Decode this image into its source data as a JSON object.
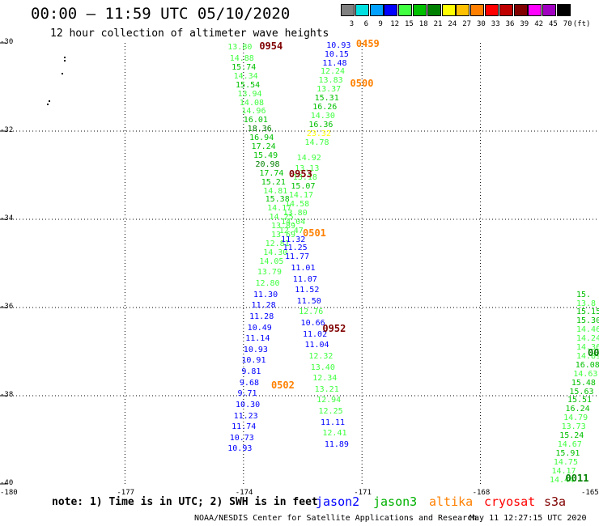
{
  "header": {
    "title": "00:00 – 11:59 UTC 05/10/2020",
    "subtitle": "12 hour collection of altimeter wave heights"
  },
  "colorbar": {
    "unit_label": "(ft)",
    "bins": [
      {
        "label": "3",
        "color": "#808080"
      },
      {
        "label": "6",
        "color": "#00e0e0"
      },
      {
        "label": "9",
        "color": "#00a0ff"
      },
      {
        "label": "12",
        "color": "#0000ff"
      },
      {
        "label": "15",
        "color": "#40ff40"
      },
      {
        "label": "18",
        "color": "#00c000"
      },
      {
        "label": "21",
        "color": "#008000"
      },
      {
        "label": "24",
        "color": "#ffff00"
      },
      {
        "label": "27",
        "color": "#ffc000"
      },
      {
        "label": "30",
        "color": "#ff8000"
      },
      {
        "label": "33",
        "color": "#ff0000"
      },
      {
        "label": "36",
        "color": "#c00000"
      },
      {
        "label": "39",
        "color": "#800000"
      },
      {
        "label": "42",
        "color": "#ff00ff"
      },
      {
        "label": "45",
        "color": "#a000c0"
      },
      {
        "label": "70",
        "color": "#000000"
      }
    ]
  },
  "map": {
    "lon_labels": [
      "-180",
      "-177",
      "-174",
      "-171",
      "-168",
      "-165"
    ],
    "lat_labels": [
      "-30",
      "-32",
      "-34",
      "-36",
      "-38",
      "-40"
    ],
    "lon_range": [
      -180,
      -165
    ],
    "lat_range": [
      -40,
      -30
    ]
  },
  "observations": [
    {
      "v": "13.80",
      "c": "#40ff40",
      "lon": -174.4,
      "lat": -30.1
    },
    {
      "v": "14.88",
      "c": "#40ff40",
      "lon": -174.35,
      "lat": -30.35
    },
    {
      "v": "15.74",
      "c": "#00c000",
      "lon": -174.3,
      "lat": -30.55
    },
    {
      "v": "14.34",
      "c": "#40ff40",
      "lon": -174.25,
      "lat": -30.75
    },
    {
      "v": "15.54",
      "c": "#00c000",
      "lon": -174.2,
      "lat": -30.95
    },
    {
      "v": "13.94",
      "c": "#40ff40",
      "lon": -174.15,
      "lat": -31.15
    },
    {
      "v": "14.08",
      "c": "#40ff40",
      "lon": -174.1,
      "lat": -31.35
    },
    {
      "v": "14.96",
      "c": "#40ff40",
      "lon": -174.05,
      "lat": -31.55
    },
    {
      "v": "16.01",
      "c": "#00c000",
      "lon": -174.0,
      "lat": -31.75
    },
    {
      "v": "18.36",
      "c": "#008000",
      "lon": -173.9,
      "lat": -31.95
    },
    {
      "v": "16.94",
      "c": "#00c000",
      "lon": -173.85,
      "lat": -32.15
    },
    {
      "v": "17.24",
      "c": "#00c000",
      "lon": -173.8,
      "lat": -32.35
    },
    {
      "v": "15.49",
      "c": "#00c000",
      "lon": -173.75,
      "lat": -32.55
    },
    {
      "v": "20.98",
      "c": "#008000",
      "lon": -173.7,
      "lat": -32.75
    },
    {
      "v": "17.74",
      "c": "#00c000",
      "lon": -173.6,
      "lat": -32.95
    },
    {
      "v": "15.21",
      "c": "#00c000",
      "lon": -173.55,
      "lat": -33.15
    },
    {
      "v": "14.81",
      "c": "#40ff40",
      "lon": -173.5,
      "lat": -33.35
    },
    {
      "v": "15.38",
      "c": "#00c000",
      "lon": -173.45,
      "lat": -33.55
    },
    {
      "v": "14.17",
      "c": "#40ff40",
      "lon": -173.4,
      "lat": -33.75
    },
    {
      "v": "14.25",
      "c": "#40ff40",
      "lon": -173.35,
      "lat": -33.95
    },
    {
      "v": "13.89",
      "c": "#40ff40",
      "lon": -173.3,
      "lat": -34.15
    },
    {
      "v": "13.69",
      "c": "#40ff40",
      "lon": -173.3,
      "lat": -34.35
    },
    {
      "v": "12.81",
      "c": "#40ff40",
      "lon": -173.45,
      "lat": -34.55
    },
    {
      "v": "14.30",
      "c": "#40ff40",
      "lon": -173.5,
      "lat": -34.75
    },
    {
      "v": "14.05",
      "c": "#40ff40",
      "lon": -173.6,
      "lat": -34.95
    },
    {
      "v": "13.79",
      "c": "#40ff40",
      "lon": -173.65,
      "lat": -35.2
    },
    {
      "v": "12.80",
      "c": "#40ff40",
      "lon": -173.7,
      "lat": -35.45
    },
    {
      "v": "11.30",
      "c": "#0000ff",
      "lon": -173.75,
      "lat": -35.7
    },
    {
      "v": "11.28",
      "c": "#0000ff",
      "lon": -173.8,
      "lat": -35.95
    },
    {
      "v": "11.28",
      "c": "#0000ff",
      "lon": -173.85,
      "lat": -36.2
    },
    {
      "v": "10.49",
      "c": "#0000ff",
      "lon": -173.9,
      "lat": -36.45
    },
    {
      "v": "11.14",
      "c": "#0000ff",
      "lon": -173.95,
      "lat": -36.7
    },
    {
      "v": "10.93",
      "c": "#0000ff",
      "lon": -174.0,
      "lat": -36.95
    },
    {
      "v": "10.91",
      "c": "#0000ff",
      "lon": -174.05,
      "lat": -37.2
    },
    {
      "v": "9.81",
      "c": "#0000ff",
      "lon": -174.05,
      "lat": -37.45
    },
    {
      "v": "9.68",
      "c": "#0000ff",
      "lon": -174.1,
      "lat": -37.7
    },
    {
      "v": "9.71",
      "c": "#0000ff",
      "lon": -174.15,
      "lat": -37.95
    },
    {
      "v": "10.30",
      "c": "#0000ff",
      "lon": -174.2,
      "lat": -38.2
    },
    {
      "v": "11.23",
      "c": "#0000ff",
      "lon": -174.25,
      "lat": -38.45
    },
    {
      "v": "11.74",
      "c": "#0000ff",
      "lon": -174.3,
      "lat": -38.7
    },
    {
      "v": "10.73",
      "c": "#0000ff",
      "lon": -174.35,
      "lat": -38.95
    },
    {
      "v": "10.93",
      "c": "#0000ff",
      "lon": -174.4,
      "lat": -39.2
    },
    {
      "v": "10.93",
      "c": "#0000ff",
      "lon": -171.9,
      "lat": -30.05
    },
    {
      "v": "10.15",
      "c": "#0000ff",
      "lon": -171.95,
      "lat": -30.25
    },
    {
      "v": "11.48",
      "c": "#0000ff",
      "lon": -172.0,
      "lat": -30.45
    },
    {
      "v": "12.24",
      "c": "#40ff40",
      "lon": -172.05,
      "lat": -30.65
    },
    {
      "v": "13.83",
      "c": "#40ff40",
      "lon": -172.1,
      "lat": -30.85
    },
    {
      "v": "13.37",
      "c": "#40ff40",
      "lon": -172.15,
      "lat": -31.05
    },
    {
      "v": "15.31",
      "c": "#00c000",
      "lon": -172.2,
      "lat": -31.25
    },
    {
      "v": "16.26",
      "c": "#00c000",
      "lon": -172.25,
      "lat": -31.45
    },
    {
      "v": "14.30",
      "c": "#40ff40",
      "lon": -172.3,
      "lat": -31.65
    },
    {
      "v": "16.36",
      "c": "#00c000",
      "lon": -172.35,
      "lat": -31.85
    },
    {
      "v": "23.32",
      "c": "#ffff00",
      "lon": -172.4,
      "lat": -32.05
    },
    {
      "v": "14.78",
      "c": "#40ff40",
      "lon": -172.45,
      "lat": -32.25
    },
    {
      "v": "14.92",
      "c": "#40ff40",
      "lon": -172.65,
      "lat": -32.6
    },
    {
      "v": "13.13",
      "c": "#40ff40",
      "lon": -172.7,
      "lat": -32.85
    },
    {
      "v": "13.18",
      "c": "#40ff40",
      "lon": -172.75,
      "lat": -33.05
    },
    {
      "v": "15.07",
      "c": "#00c000",
      "lon": -172.8,
      "lat": -33.25
    },
    {
      "v": "14.17",
      "c": "#40ff40",
      "lon": -172.85,
      "lat": -33.45
    },
    {
      "v": "14.58",
      "c": "#40ff40",
      "lon": -172.95,
      "lat": -33.65
    },
    {
      "v": "13.80",
      "c": "#40ff40",
      "lon": -173.0,
      "lat": -33.85
    },
    {
      "v": "14.04",
      "c": "#40ff40",
      "lon": -173.05,
      "lat": -34.05
    },
    {
      "v": "12.47",
      "c": "#40ff40",
      "lon": -173.1,
      "lat": -34.25
    },
    {
      "v": "11.32",
      "c": "#0000ff",
      "lon": -173.05,
      "lat": -34.45
    },
    {
      "v": "11.25",
      "c": "#0000ff",
      "lon": -173.0,
      "lat": -34.65
    },
    {
      "v": "11.77",
      "c": "#0000ff",
      "lon": -172.95,
      "lat": -34.85
    },
    {
      "v": "11.01",
      "c": "#0000ff",
      "lon": -172.8,
      "lat": -35.1
    },
    {
      "v": "11.07",
      "c": "#0000ff",
      "lon": -172.75,
      "lat": -35.35
    },
    {
      "v": "11.52",
      "c": "#0000ff",
      "lon": -172.7,
      "lat": -35.6
    },
    {
      "v": "11.50",
      "c": "#0000ff",
      "lon": -172.65,
      "lat": -35.85
    },
    {
      "v": "12.76",
      "c": "#40ff40",
      "lon": -172.6,
      "lat": -36.1
    },
    {
      "v": "10.66",
      "c": "#0000ff",
      "lon": -172.55,
      "lat": -36.35
    },
    {
      "v": "11.02",
      "c": "#0000ff",
      "lon": -172.5,
      "lat": -36.6
    },
    {
      "v": "11.04",
      "c": "#0000ff",
      "lon": -172.45,
      "lat": -36.85
    },
    {
      "v": "12.32",
      "c": "#40ff40",
      "lon": -172.35,
      "lat": -37.1
    },
    {
      "v": "13.40",
      "c": "#40ff40",
      "lon": -172.3,
      "lat": -37.35
    },
    {
      "v": "12.34",
      "c": "#40ff40",
      "lon": -172.25,
      "lat": -37.6
    },
    {
      "v": "13.21",
      "c": "#40ff40",
      "lon": -172.2,
      "lat": -37.85
    },
    {
      "v": "12.94",
      "c": "#40ff40",
      "lon": -172.15,
      "lat": -38.1
    },
    {
      "v": "12.25",
      "c": "#40ff40",
      "lon": -172.1,
      "lat": -38.35
    },
    {
      "v": "11.11",
      "c": "#0000ff",
      "lon": -172.05,
      "lat": -38.6
    },
    {
      "v": "12.41",
      "c": "#40ff40",
      "lon": -172.0,
      "lat": -38.85
    },
    {
      "v": "11.89",
      "c": "#0000ff",
      "lon": -171.95,
      "lat": -39.1
    },
    {
      "v": "15.",
      "c": "#00c000",
      "lon": -165.2,
      "lat": -35.7
    },
    {
      "v": "13.8",
      "c": "#40ff40",
      "lon": -165.25,
      "lat": -35.9
    },
    {
      "v": "15.15",
      "c": "#00c000",
      "lon": -165.3,
      "lat": -36.1
    },
    {
      "v": "15.30",
      "c": "#00c000",
      "lon": -165.35,
      "lat": -36.3
    },
    {
      "v": "14.46",
      "c": "#40ff40",
      "lon": -165.4,
      "lat": -36.5
    },
    {
      "v": "14.24",
      "c": "#40ff40",
      "lon": -165.45,
      "lat": -36.7
    },
    {
      "v": "14.36",
      "c": "#40ff40",
      "lon": -165.5,
      "lat": -36.9
    },
    {
      "v": "14.89",
      "c": "#40ff40",
      "lon": -165.55,
      "lat": -37.1
    },
    {
      "v": "16.08",
      "c": "#00c000",
      "lon": -165.6,
      "lat": -37.3
    },
    {
      "v": "14.63",
      "c": "#40ff40",
      "lon": -165.65,
      "lat": -37.5
    },
    {
      "v": "15.48",
      "c": "#00c000",
      "lon": -165.7,
      "lat": -37.7
    },
    {
      "v": "15.63",
      "c": "#00c000",
      "lon": -165.75,
      "lat": -37.9
    },
    {
      "v": "15.51",
      "c": "#00c000",
      "lon": -165.8,
      "lat": -38.1
    },
    {
      "v": "16.24",
      "c": "#00c000",
      "lon": -165.85,
      "lat": -38.3
    },
    {
      "v": "14.79",
      "c": "#40ff40",
      "lon": -165.9,
      "lat": -38.5
    },
    {
      "v": "13.73",
      "c": "#40ff40",
      "lon": -165.95,
      "lat": -38.7
    },
    {
      "v": "15.24",
      "c": "#00c000",
      "lon": -166.0,
      "lat": -38.9
    },
    {
      "v": "14.67",
      "c": "#40ff40",
      "lon": -166.05,
      "lat": -39.1
    },
    {
      "v": "15.91",
      "c": "#00c000",
      "lon": -166.1,
      "lat": -39.3
    },
    {
      "v": "14.75",
      "c": "#40ff40",
      "lon": -166.15,
      "lat": -39.5
    },
    {
      "v": "14.17",
      "c": "#40ff40",
      "lon": -166.2,
      "lat": -39.7
    },
    {
      "v": "14.44",
      "c": "#40ff40",
      "lon": -166.25,
      "lat": -39.9
    }
  ],
  "time_labels": [
    {
      "t": "0954",
      "c": "#800000",
      "lon": -173.6,
      "lat": -30.05
    },
    {
      "t": "0459",
      "c": "#ff8000",
      "lon": -171.15,
      "lat": -30.0
    },
    {
      "t": "0500",
      "c": "#ff8000",
      "lon": -171.3,
      "lat": -30.9
    },
    {
      "t": "0953",
      "c": "#800000",
      "lon": -172.85,
      "lat": -32.95
    },
    {
      "t": "0501",
      "c": "#ff8000",
      "lon": -172.5,
      "lat": -34.3
    },
    {
      "t": "0952",
      "c": "#800000",
      "lon": -172.0,
      "lat": -36.45
    },
    {
      "t": "0502",
      "c": "#ff8000",
      "lon": -173.3,
      "lat": -37.75
    },
    {
      "t": "0011",
      "c": "#008000",
      "lon": -165.85,
      "lat": -39.85
    },
    {
      "t": "00",
      "c": "#008000",
      "lon": -165.0,
      "lat": -37.0
    }
  ],
  "note": "note:  1) Time is in UTC; 2) SWH is in feet",
  "legend": [
    {
      "name": "jason2",
      "color": "#0000ff"
    },
    {
      "name": "jason3",
      "color": "#00b000"
    },
    {
      "name": "altika",
      "color": "#ff8000"
    },
    {
      "name": "cryosat",
      "color": "#ff0000"
    },
    {
      "name": "s3a",
      "color": "#800000"
    }
  ],
  "footer": {
    "left": "NOAA/NESDIS Center for Satellite Applications and Research",
    "right": "May 11 12:27:15 UTC 2020"
  }
}
